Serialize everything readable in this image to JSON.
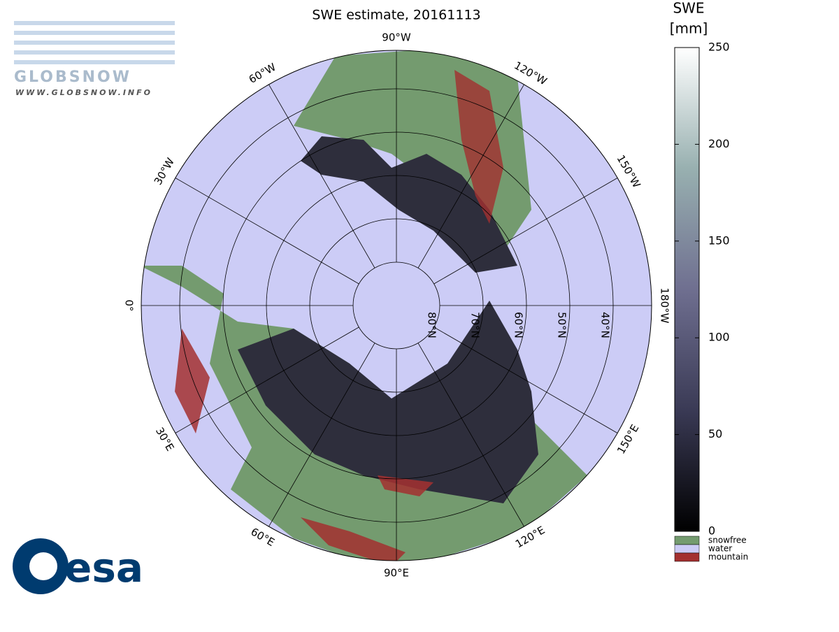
{
  "title": "SWE estimate, 20161113",
  "logo": {
    "name": "GLOBSNOW",
    "url": "WWW.GLOBSNOW.INFO"
  },
  "agency": "esa",
  "map": {
    "latitudes": [
      {
        "value": 80,
        "label": "80°N"
      },
      {
        "value": 70,
        "label": "70°N"
      },
      {
        "value": 60,
        "label": "60°N"
      },
      {
        "value": 50,
        "label": "50°N"
      },
      {
        "value": 40,
        "label": "40°N"
      }
    ],
    "meridians": [
      {
        "value": 0,
        "label": "0°"
      },
      {
        "value": 30,
        "label": "30°E"
      },
      {
        "value": 60,
        "label": "60°E"
      },
      {
        "value": 90,
        "label": "90°E"
      },
      {
        "value": 120,
        "label": "120°E"
      },
      {
        "value": 150,
        "label": "150°E"
      },
      {
        "value": 180,
        "label": "180°W"
      },
      {
        "value": -150,
        "label": "150°W"
      },
      {
        "value": -120,
        "label": "120°W"
      },
      {
        "value": -90,
        "label": "90°W"
      },
      {
        "value": -60,
        "label": "60°W"
      },
      {
        "value": -30,
        "label": "30°W"
      }
    ]
  },
  "colorbar": {
    "title": [
      "SWE",
      "[mm]"
    ],
    "lim": [
      0,
      250
    ],
    "ticks": [
      0,
      50,
      100,
      150,
      200,
      250
    ],
    "classes": [
      {
        "name": "snowfree",
        "color": "#749b6f"
      },
      {
        "name": "water",
        "color": "#ccccf6"
      },
      {
        "name": "mountain",
        "color": "#a33030"
      }
    ]
  }
}
